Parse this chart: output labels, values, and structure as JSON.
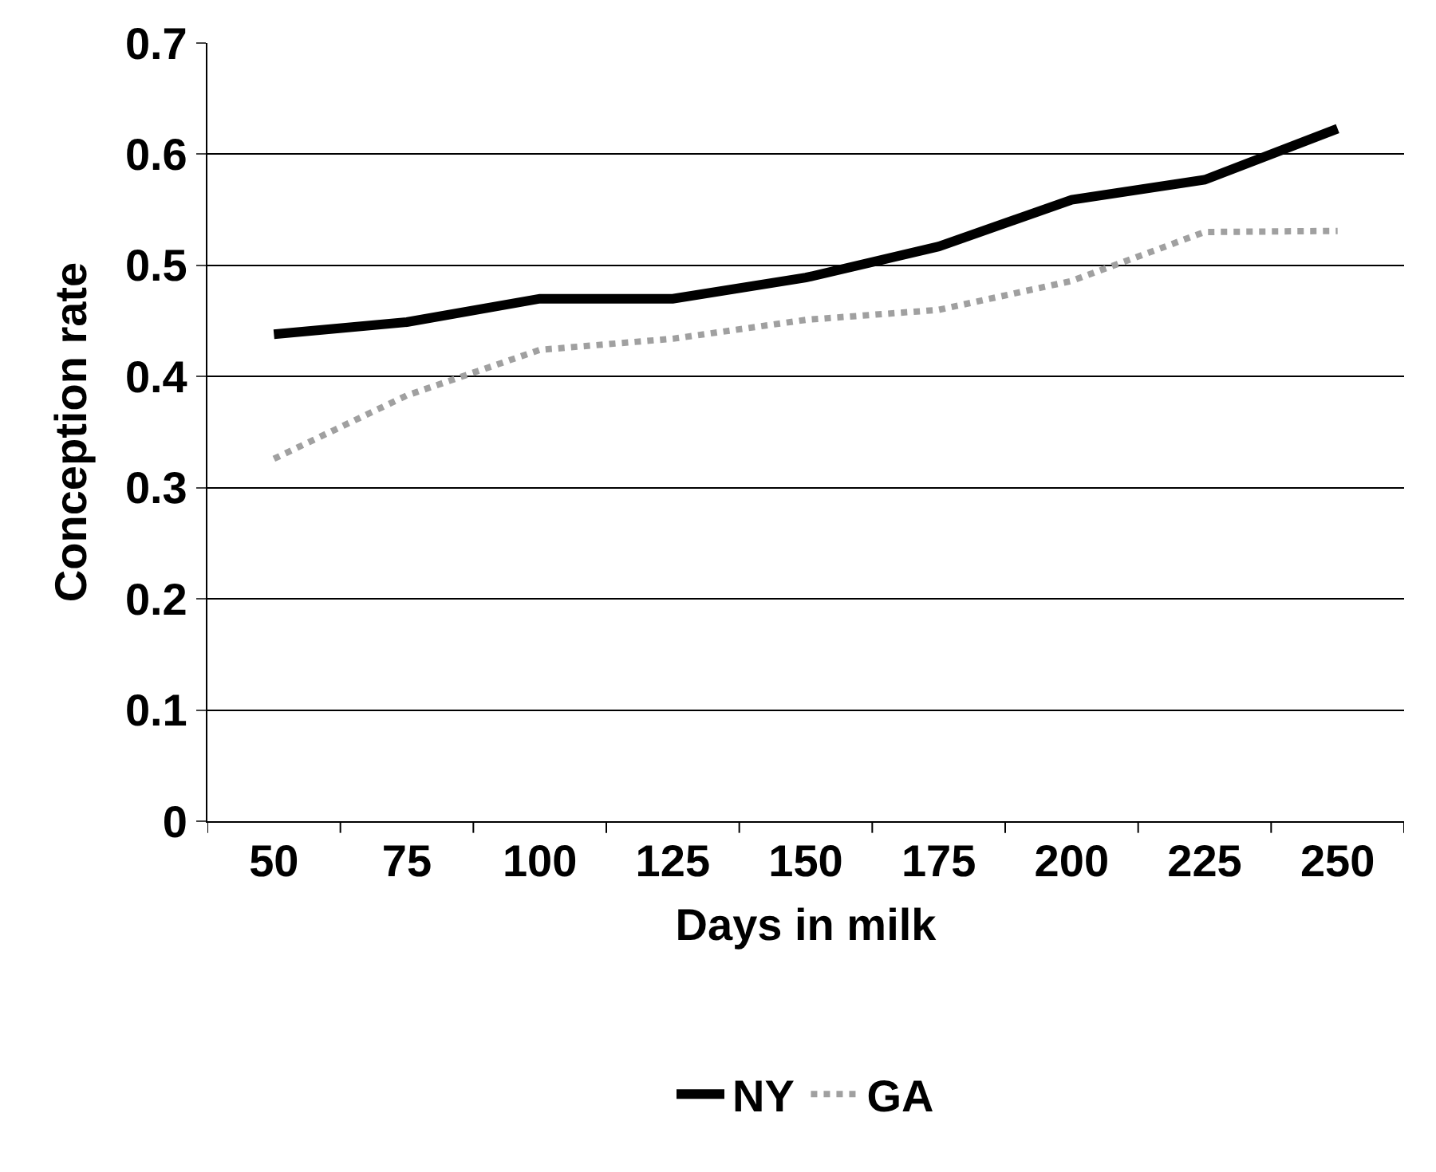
{
  "chart_data": {
    "type": "line",
    "xlabel": "Days in milk",
    "ylabel": "Conception rate",
    "categories": [
      "50",
      "75",
      "100",
      "125",
      "150",
      "175",
      "200",
      "225",
      "250"
    ],
    "series": [
      {
        "name": "NY",
        "color": "#000000",
        "line_style": "solid",
        "values": [
          0.438,
          0.449,
          0.47,
          0.47,
          0.489,
          0.517,
          0.559,
          0.577,
          0.623
        ]
      },
      {
        "name": "GA",
        "color": "#a0a0a0",
        "line_style": "dotted",
        "values": [
          0.326,
          0.383,
          0.424,
          0.434,
          0.451,
          0.46,
          0.486,
          0.53,
          0.531
        ]
      }
    ],
    "ylim": [
      0,
      0.7
    ],
    "yticks": [
      0,
      0.1,
      0.2,
      0.3,
      0.4,
      0.5,
      0.6,
      0.7
    ],
    "grid": "y",
    "legend": "bottom",
    "marker": "none"
  }
}
